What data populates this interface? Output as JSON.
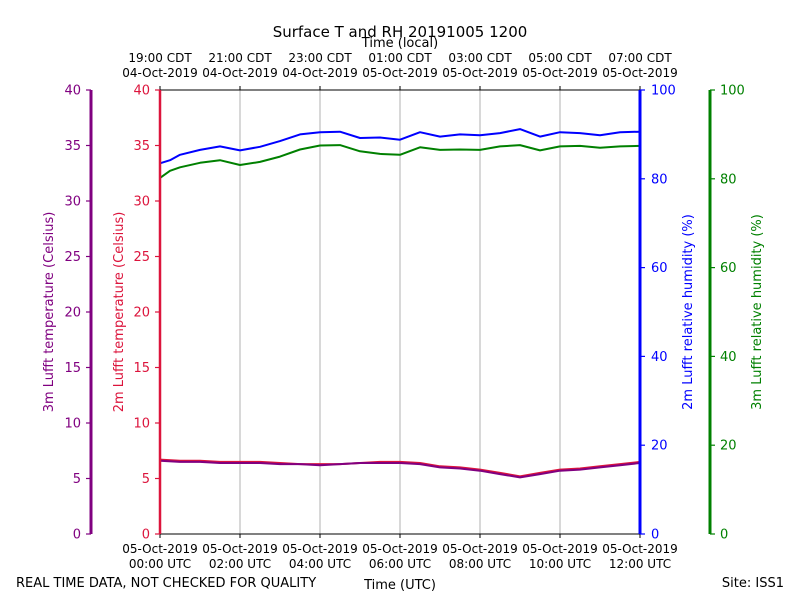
{
  "chart_data": {
    "type": "line",
    "title": "Surface T and RH 20191005 1200",
    "top_axis_title": "Time (local)",
    "bottom_axis_title": "Time (UTC)",
    "x_range_hours_utc": [
      0,
      12
    ],
    "top_ticks": [
      {
        "hour": 0,
        "line1": "19:00 CDT",
        "line2": "04-Oct-2019"
      },
      {
        "hour": 2,
        "line1": "21:00 CDT",
        "line2": "04-Oct-2019"
      },
      {
        "hour": 4,
        "line1": "23:00 CDT",
        "line2": "04-Oct-2019"
      },
      {
        "hour": 6,
        "line1": "01:00 CDT",
        "line2": "05-Oct-2019"
      },
      {
        "hour": 8,
        "line1": "03:00 CDT",
        "line2": "05-Oct-2019"
      },
      {
        "hour": 10,
        "line1": "05:00 CDT",
        "line2": "05-Oct-2019"
      },
      {
        "hour": 12,
        "line1": "07:00 CDT",
        "line2": "05-Oct-2019"
      }
    ],
    "bottom_ticks": [
      {
        "hour": 0,
        "line1": "05-Oct-2019",
        "line2": "00:00 UTC"
      },
      {
        "hour": 2,
        "line1": "05-Oct-2019",
        "line2": "02:00 UTC"
      },
      {
        "hour": 4,
        "line1": "05-Oct-2019",
        "line2": "04:00 UTC"
      },
      {
        "hour": 6,
        "line1": "05-Oct-2019",
        "line2": "06:00 UTC"
      },
      {
        "hour": 8,
        "line1": "05-Oct-2019",
        "line2": "08:00 UTC"
      },
      {
        "hour": 10,
        "line1": "05-Oct-2019",
        "line2": "10:00 UTC"
      },
      {
        "hour": 12,
        "line1": "05-Oct-2019",
        "line2": "12:00 UTC"
      }
    ],
    "axes": {
      "temp_3m": {
        "label": "3m Lufft temperature (Celsius)",
        "color": "#800080",
        "ylim": [
          0,
          40
        ],
        "ticks": [
          0,
          5,
          10,
          15,
          20,
          25,
          30,
          35,
          40
        ]
      },
      "temp_2m": {
        "label": "2m Lufft temperature (Celsius)",
        "color": "#dc143c",
        "ylim": [
          0,
          40
        ],
        "ticks": [
          0,
          5,
          10,
          15,
          20,
          25,
          30,
          35,
          40
        ]
      },
      "rh_2m": {
        "label": "2m Lufft relative humidity (%)",
        "color": "#0000ff",
        "ylim": [
          0,
          100
        ],
        "ticks": [
          0,
          20,
          40,
          60,
          80,
          100
        ]
      },
      "rh_3m": {
        "label": "3m Lufft relative humidity (%)",
        "color": "#008000",
        "ylim": [
          0,
          100
        ],
        "ticks": [
          0,
          20,
          40,
          60,
          80,
          100
        ]
      }
    },
    "grid": "vertical",
    "series": [
      {
        "name": "2m Lufft relative humidity",
        "axis": "rh_2m",
        "color": "#0000ff",
        "x": [
          0,
          0.25,
          0.5,
          1,
          1.5,
          2,
          2.5,
          3,
          3.5,
          4,
          4.5,
          5,
          5.5,
          6,
          6.5,
          7,
          7.5,
          8,
          8.5,
          9,
          9.5,
          10,
          10.5,
          11,
          11.5,
          12
        ],
        "y": [
          83.5,
          84.2,
          85.4,
          86.5,
          87.3,
          86.4,
          87.2,
          88.5,
          90.0,
          90.5,
          90.6,
          89.2,
          89.3,
          88.8,
          90.5,
          89.5,
          90.0,
          89.8,
          90.3,
          91.2,
          89.5,
          90.5,
          90.3,
          89.8,
          90.5,
          90.6
        ]
      },
      {
        "name": "3m Lufft relative humidity",
        "axis": "rh_3m",
        "color": "#008000",
        "x": [
          0,
          0.25,
          0.5,
          1,
          1.5,
          2,
          2.5,
          3,
          3.5,
          4,
          4.5,
          5,
          5.5,
          6,
          6.5,
          7,
          7.5,
          8,
          8.5,
          9,
          9.5,
          10,
          10.5,
          11,
          11.5,
          12
        ],
        "y": [
          80.2,
          81.8,
          82.6,
          83.6,
          84.2,
          83.1,
          83.8,
          85.0,
          86.6,
          87.5,
          87.6,
          86.2,
          85.6,
          85.4,
          87.1,
          86.5,
          86.6,
          86.5,
          87.3,
          87.6,
          86.4,
          87.3,
          87.4,
          87.0,
          87.3,
          87.4
        ]
      },
      {
        "name": "2m Lufft temperature",
        "axis": "temp_2m",
        "color": "#dc143c",
        "x": [
          0,
          0.5,
          1,
          1.5,
          2,
          2.5,
          3,
          3.5,
          4,
          4.5,
          5,
          5.5,
          6,
          6.5,
          7,
          7.5,
          8,
          8.5,
          9,
          9.5,
          10,
          10.5,
          11,
          11.5,
          12
        ],
        "y": [
          6.7,
          6.6,
          6.6,
          6.5,
          6.5,
          6.5,
          6.4,
          6.3,
          6.3,
          6.3,
          6.4,
          6.5,
          6.5,
          6.4,
          6.1,
          6.0,
          5.8,
          5.5,
          5.2,
          5.5,
          5.8,
          5.9,
          6.1,
          6.3,
          6.5
        ]
      },
      {
        "name": "3m Lufft temperature",
        "axis": "temp_3m",
        "color": "#800080",
        "x": [
          0,
          0.5,
          1,
          1.5,
          2,
          2.5,
          3,
          3.5,
          4,
          4.5,
          5,
          5.5,
          6,
          6.5,
          7,
          7.5,
          8,
          8.5,
          9,
          9.5,
          10,
          10.5,
          11,
          11.5,
          12
        ],
        "y": [
          6.6,
          6.5,
          6.5,
          6.4,
          6.4,
          6.4,
          6.3,
          6.3,
          6.2,
          6.3,
          6.4,
          6.4,
          6.4,
          6.3,
          6.0,
          5.9,
          5.7,
          5.4,
          5.1,
          5.4,
          5.7,
          5.8,
          6.0,
          6.2,
          6.4
        ]
      }
    ]
  },
  "footer": {
    "left": "REAL TIME DATA, NOT CHECKED FOR QUALITY",
    "right": "Site: ISS1"
  }
}
